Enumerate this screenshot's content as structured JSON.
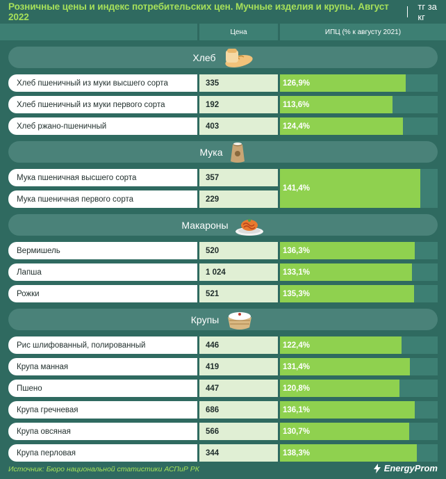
{
  "header": {
    "title": "Розничные цены и индекс потребительских цен. Мучные изделия и крупы. Август 2022",
    "unit": "тг за кг"
  },
  "columns": {
    "price": "Цена",
    "ipc": "ИПЦ (% к августу 2021)"
  },
  "colors": {
    "background": "#2f6a60",
    "accent": "#a6e05a",
    "bar": "#8fd14f",
    "price_cell": "#e0efd4"
  },
  "chart_data": {
    "type": "bar",
    "title": "Розничные цены и индекс потребительских цен. Мучные изделия и крупы. Август 2022",
    "unit": "тг за кг",
    "ipc_axis_range": [
      0,
      145
    ],
    "groups": [
      {
        "name": "Хлеб",
        "icon": "bread-icon",
        "items": [
          {
            "label": "Хлеб пшеничный из муки высшего сорта",
            "price": "335",
            "ipc": 126.9,
            "ipc_label": "126,9%"
          },
          {
            "label": "Хлеб пшеничный из муки первого сорта",
            "price": "192",
            "ipc": 113.6,
            "ipc_label": "113,6%"
          },
          {
            "label": "Хлеб ржано-пшеничный",
            "price": "403",
            "ipc": 124.4,
            "ipc_label": "124,4%"
          }
        ]
      },
      {
        "name": "Мука",
        "icon": "flour-sack-icon",
        "merged_ipc": true,
        "items": [
          {
            "label": "Мука пшеничная высшего сорта",
            "price": "357",
            "ipc": 141.4,
            "ipc_label": "141,4%"
          },
          {
            "label": "Мука пшеничная первого сорта",
            "price": "229",
            "ipc": 141.4,
            "ipc_label": "141,4%"
          }
        ]
      },
      {
        "name": "Макароны",
        "icon": "pasta-plate-icon",
        "items": [
          {
            "label": "Вермишель",
            "price": "520",
            "ipc": 136.3,
            "ipc_label": "136,3%"
          },
          {
            "label": "Лапша",
            "price": "1 024",
            "ipc": 133.1,
            "ipc_label": "133,1%"
          },
          {
            "label": "Рожки",
            "price": "521",
            "ipc": 135.3,
            "ipc_label": "135,3%"
          }
        ]
      },
      {
        "name": "Крупы",
        "icon": "rice-bowl-icon",
        "items": [
          {
            "label": "Рис шлифованный, полированный",
            "price": "446",
            "ipc": 122.4,
            "ipc_label": "122,4%"
          },
          {
            "label": "Крупа манная",
            "price": "419",
            "ipc": 131.4,
            "ipc_label": "131,4%"
          },
          {
            "label": "Пшено",
            "price": "447",
            "ipc": 120.8,
            "ipc_label": "120,8%"
          },
          {
            "label": "Крупа гречневая",
            "price": "686",
            "ipc": 136.1,
            "ipc_label": "136,1%"
          },
          {
            "label": "Крупа овсяная",
            "price": "566",
            "ipc": 130.7,
            "ipc_label": "130,7%"
          },
          {
            "label": "Крупа перловая",
            "price": "344",
            "ipc": 138.3,
            "ipc_label": "138,3%"
          }
        ]
      }
    ]
  },
  "footer": {
    "source": "Источник: Бюро национальной статистики АСПиР РК",
    "logo": "EnergyProm"
  }
}
